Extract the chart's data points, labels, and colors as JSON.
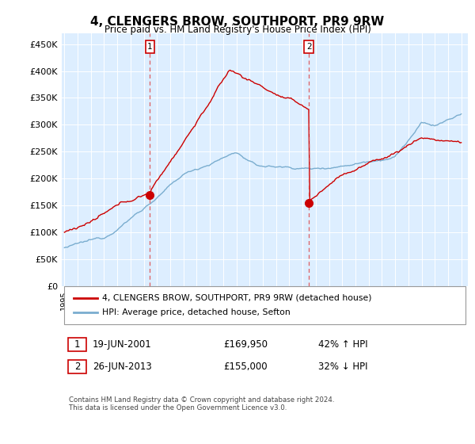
{
  "title": "4, CLENGERS BROW, SOUTHPORT, PR9 9RW",
  "subtitle": "Price paid vs. HM Land Registry's House Price Index (HPI)",
  "ylabel_ticks": [
    "£0",
    "£50K",
    "£100K",
    "£150K",
    "£200K",
    "£250K",
    "£300K",
    "£350K",
    "£400K",
    "£450K"
  ],
  "ytick_values": [
    0,
    50000,
    100000,
    150000,
    200000,
    250000,
    300000,
    350000,
    400000,
    450000
  ],
  "ylim": [
    0,
    470000
  ],
  "xlim_start": 1994.8,
  "xlim_end": 2025.5,
  "sale1_date": 2001.47,
  "sale1_price": 169950,
  "sale2_date": 2013.48,
  "sale2_price": 155000,
  "sale1_date_str": "19-JUN-2001",
  "sale1_price_str": "£169,950",
  "sale1_hpi": "42% ↑ HPI",
  "sale2_date_str": "26-JUN-2013",
  "sale2_price_str": "£155,000",
  "sale2_hpi": "32% ↓ HPI",
  "legend_line1": "4, CLENGERS BROW, SOUTHPORT, PR9 9RW (detached house)",
  "legend_line2": "HPI: Average price, detached house, Sefton",
  "footnote1": "Contains HM Land Registry data © Crown copyright and database right 2024.",
  "footnote2": "This data is licensed under the Open Government Licence v3.0.",
  "red_color": "#cc0000",
  "blue_color": "#7aadcf",
  "shade_color": "#ddeeff",
  "bg_color": "#ddeeff",
  "dashed_color": "#dd4444",
  "label_box_color": "#cc0000"
}
